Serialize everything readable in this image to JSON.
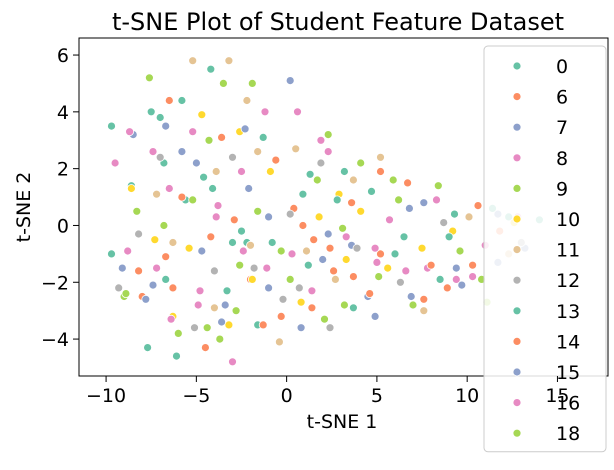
{
  "chart_data": {
    "type": "scatter",
    "title": "t-SNE Plot of Student Feature Dataset",
    "xlabel": "t-SNE 1",
    "ylabel": "t-SNE 2",
    "xlim": [
      -11.5,
      17.8
    ],
    "ylim": [
      -5.3,
      6.6
    ],
    "xticks": [
      -10,
      -5,
      0,
      5,
      10,
      15
    ],
    "yticks": [
      -4,
      -2,
      0,
      2,
      4,
      6
    ],
    "grid": false,
    "legend_position": "right",
    "palette": [
      "#66c2a5",
      "#fc8d62",
      "#8da0cb",
      "#e78ac3",
      "#a6d854",
      "#ffd92f",
      "#e5c494",
      "#b3b3b3"
    ],
    "series": [
      {
        "name": "0",
        "points": [
          [
            -5.8,
            4.4
          ],
          [
            -4.2,
            5.5
          ],
          [
            -7.5,
            4.0
          ],
          [
            -8.6,
            1.4
          ],
          [
            -9.7,
            -1.0
          ],
          [
            -6.1,
            -4.6
          ],
          [
            -7.0,
            3.8
          ],
          [
            -4.6,
            1.7
          ],
          [
            1.2,
            -1.4
          ],
          [
            6.5,
            -0.4
          ],
          [
            12.3,
            0.3
          ],
          [
            -1.6,
            -3.5
          ],
          [
            3.2,
            1.9
          ],
          [
            8.5,
            -1.9
          ],
          [
            -3.0,
            -0.6
          ],
          [
            -6.8,
            2.2
          ],
          [
            9.3,
            0.4
          ],
          [
            0.9,
            1.1
          ],
          [
            -2.2,
            -0.6
          ]
        ]
      },
      {
        "name": "6",
        "points": [
          [
            -6.5,
            4.4
          ],
          [
            -8.0,
            -2.5
          ],
          [
            -2.0,
            -1.9
          ],
          [
            0.4,
            0.6
          ],
          [
            5.2,
            -1.0
          ],
          [
            7.6,
            -2.6
          ],
          [
            2.6,
            -1.6
          ],
          [
            10.6,
            0.7
          ],
          [
            -4.2,
            -0.4
          ],
          [
            3.6,
            0.8
          ],
          [
            -0.3,
            -3.2
          ],
          [
            6.7,
            1.5
          ],
          [
            11.8,
            -0.2
          ],
          [
            -6.3,
            -2.2
          ],
          [
            1.5,
            -0.5
          ],
          [
            8.9,
            -2.2
          ],
          [
            -3.6,
            3.1
          ]
        ]
      },
      {
        "name": "7",
        "points": [
          [
            -6.7,
            3.5
          ],
          [
            -8.5,
            3.2
          ],
          [
            -5.0,
            2.2
          ],
          [
            -3.4,
            -2.8
          ],
          [
            0.2,
            5.1
          ],
          [
            2.3,
            -0.3
          ],
          [
            9.4,
            -1.5
          ],
          [
            -7.8,
            -2.6
          ],
          [
            4.5,
            -2.5
          ],
          [
            -2.1,
            1.3
          ],
          [
            6.8,
            0.6
          ],
          [
            13.2,
            -0.8
          ],
          [
            -1.0,
            -2.2
          ],
          [
            11.7,
            0.4
          ],
          [
            -9.3,
            -2.2
          ],
          [
            3.6,
            -0.7
          ]
        ]
      },
      {
        "name": "8",
        "points": [
          [
            -9.5,
            2.2
          ],
          [
            -3.9,
            0.3
          ],
          [
            -4.9,
            -2.8
          ],
          [
            -6.5,
            1.3
          ],
          [
            -3.0,
            -4.8
          ],
          [
            0.6,
            4.0
          ],
          [
            1.4,
            -2.3
          ],
          [
            7.8,
            -1.5
          ],
          [
            -5.2,
            3.3
          ],
          [
            -1.1,
            -1.5
          ],
          [
            2.3,
            2.6
          ],
          [
            9.4,
            -1.9
          ],
          [
            -7.2,
            -1.5
          ],
          [
            5.7,
            0.2
          ],
          [
            11.0,
            -0.7
          ],
          [
            -2.5,
            1.9
          ],
          [
            4.9,
            -0.8
          ],
          [
            -8.7,
            3.3
          ]
        ]
      },
      {
        "name": "9",
        "points": [
          [
            -7.6,
            5.2
          ],
          [
            -3.5,
            5.0
          ],
          [
            -9.0,
            -2.5
          ],
          [
            -4.4,
            -3.6
          ],
          [
            -1.6,
            0.5
          ],
          [
            2.3,
            3.2
          ],
          [
            5.1,
            -1.8
          ],
          [
            8.4,
            1.4
          ],
          [
            -6.0,
            -3.8
          ],
          [
            0.2,
            -1.9
          ],
          [
            3.2,
            -2.8
          ],
          [
            -2.6,
            -1.4
          ],
          [
            6.2,
            0.9
          ],
          [
            10.8,
            -1.9
          ],
          [
            -8.3,
            0.5
          ],
          [
            1.7,
            1.6
          ]
        ]
      },
      {
        "name": "10",
        "points": [
          [
            -8.6,
            1.3
          ],
          [
            -4.7,
            3.9
          ],
          [
            -2.6,
            3.3
          ],
          [
            -0.9,
            1.9
          ],
          [
            1.8,
            0.3
          ],
          [
            5.6,
            -1.5
          ],
          [
            -5.4,
            -0.8
          ],
          [
            -3.2,
            -3.5
          ],
          [
            0.8,
            -2.7
          ],
          [
            2.9,
            1.1
          ],
          [
            7.5,
            -0.8
          ],
          [
            -6.3,
            -3.2
          ],
          [
            4.1,
            0.5
          ],
          [
            12.6,
            0.1
          ],
          [
            -1.9,
            -1.9
          ],
          [
            9.2,
            -0.2
          ],
          [
            -7.3,
            -0.5
          ],
          [
            3.3,
            -1.2
          ]
        ]
      },
      {
        "name": "11",
        "points": [
          [
            -5.2,
            5.8
          ],
          [
            -3.2,
            5.8
          ],
          [
            -2.2,
            4.4
          ],
          [
            -1.6,
            2.6
          ],
          [
            0.5,
            2.7
          ],
          [
            -4.0,
            -2.9
          ],
          [
            -2.0,
            -0.7
          ],
          [
            2.7,
            -1.9
          ],
          [
            7.6,
            -3.0
          ],
          [
            -6.3,
            -0.6
          ],
          [
            5.2,
            2.4
          ],
          [
            12.3,
            -1.0
          ],
          [
            -0.4,
            -4.1
          ],
          [
            3.7,
            1.6
          ],
          [
            -7.2,
            1.1
          ],
          [
            10.1,
            0.3
          ],
          [
            1.1,
            -0.9
          ],
          [
            -3.9,
            1.9
          ]
        ]
      },
      {
        "name": "12",
        "points": [
          [
            -9.3,
            -2.2
          ],
          [
            -5.1,
            -3.6
          ],
          [
            -3.0,
            2.4
          ],
          [
            -1.8,
            -1.5
          ],
          [
            0.2,
            0.4
          ],
          [
            -0.2,
            -2.6
          ],
          [
            1.9,
            2.2
          ],
          [
            6.3,
            -2.0
          ],
          [
            -7.0,
            2.4
          ],
          [
            3.9,
            -0.8
          ],
          [
            8.7,
            0.1
          ],
          [
            -4.0,
            -1.6
          ],
          [
            2.4,
            -3.6
          ],
          [
            13.0,
            -0.6
          ],
          [
            -8.2,
            -0.3
          ],
          [
            0.7,
            -2.2
          ]
        ]
      },
      {
        "name": "13",
        "points": [
          [
            -9.7,
            3.5
          ],
          [
            -4.1,
            1.3
          ],
          [
            -6.7,
            -1.9
          ],
          [
            -2.5,
            -0.2
          ],
          [
            1.3,
            1.8
          ],
          [
            3.7,
            -2.9
          ],
          [
            9.0,
            -0.4
          ],
          [
            -5.6,
            0.9
          ],
          [
            -0.8,
            -0.6
          ],
          [
            6.0,
            -1.0
          ],
          [
            11.4,
            0.6
          ],
          [
            -3.3,
            -2.3
          ],
          [
            2.8,
            0.9
          ],
          [
            14.0,
            0.2
          ],
          [
            -7.7,
            -4.3
          ],
          [
            4.7,
            1.2
          ],
          [
            -1.3,
            3.1
          ]
        ]
      },
      {
        "name": "14",
        "points": [
          [
            -8.2,
            -1.6
          ],
          [
            -5.8,
            1.0
          ],
          [
            -4.5,
            -4.3
          ],
          [
            -1.3,
            -3.5
          ],
          [
            0.9,
            0.0
          ],
          [
            2.4,
            -0.8
          ],
          [
            3.7,
            -1.8
          ],
          [
            8.0,
            -1.4
          ],
          [
            5.2,
            1.9
          ],
          [
            10.3,
            -1.4
          ],
          [
            -2.9,
            0.2
          ],
          [
            -0.6,
            2.3
          ],
          [
            4.6,
            -2.4
          ],
          [
            -6.7,
            -1.1
          ],
          [
            1.4,
            -2.9
          ]
        ]
      },
      {
        "name": "15",
        "points": [
          [
            -9.1,
            -1.5
          ],
          [
            -7.4,
            -2.1
          ],
          [
            -3.6,
            -3.4
          ],
          [
            -1.0,
            0.3
          ],
          [
            0.8,
            -3.6
          ],
          [
            4.9,
            -3.2
          ],
          [
            6.9,
            -2.5
          ],
          [
            9.7,
            -2.1
          ],
          [
            -5.8,
            2.6
          ],
          [
            2.0,
            -1.2
          ],
          [
            11.7,
            -1.3
          ],
          [
            -2.3,
            3.4
          ],
          [
            4.1,
            2.2
          ],
          [
            -4.7,
            -0.9
          ],
          [
            7.6,
            0.8
          ]
        ]
      },
      {
        "name": "16",
        "points": [
          [
            -7.4,
            2.6
          ],
          [
            -6.4,
            -3.3
          ],
          [
            -4.8,
            -2.3
          ],
          [
            -2.4,
            -0.9
          ],
          [
            0.3,
            -1.0
          ],
          [
            3.3,
            -0.4
          ],
          [
            6.6,
            -1.6
          ],
          [
            10.3,
            -1.8
          ],
          [
            1.9,
            3.0
          ],
          [
            -3.8,
            0.7
          ],
          [
            12.8,
            0.3
          ],
          [
            -1.2,
            4.0
          ],
          [
            5.0,
            -1.3
          ],
          [
            -8.8,
            -0.9
          ],
          [
            8.3,
            0.9
          ]
        ]
      },
      {
        "name": "18",
        "points": [
          [
            -5.2,
            0.9
          ],
          [
            -3.7,
            -4.0
          ],
          [
            -0.3,
            -0.9
          ],
          [
            2.1,
            -3.3
          ],
          [
            4.1,
            2.2
          ],
          [
            7.0,
            -2.8
          ],
          [
            11.1,
            -2.7
          ],
          [
            -6.8,
            0.0
          ],
          [
            -1.9,
            5.0
          ],
          [
            5.9,
            1.6
          ],
          [
            -4.3,
            3.0
          ],
          [
            9.6,
            -0.9
          ],
          [
            -2.8,
            -3.0
          ],
          [
            3.1,
            -0.1
          ],
          [
            -8.9,
            -2.4
          ]
        ]
      }
    ]
  }
}
